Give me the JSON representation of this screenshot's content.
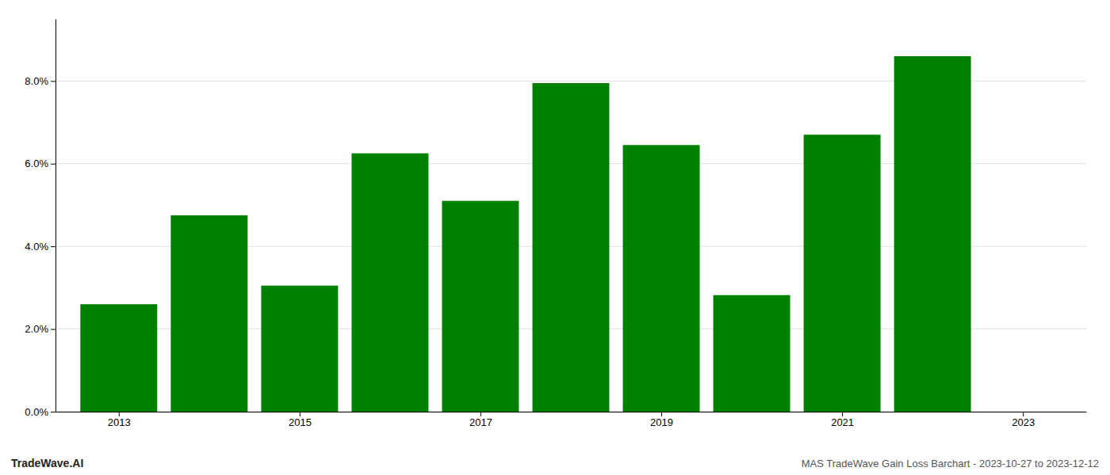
{
  "chart_data": {
    "type": "bar",
    "x": [
      2013,
      2014,
      2015,
      2016,
      2017,
      2018,
      2019,
      2020,
      2021,
      2022
    ],
    "values": [
      0.026,
      0.0475,
      0.0305,
      0.0625,
      0.051,
      0.0795,
      0.0645,
      0.0282,
      0.067,
      0.086
    ],
    "color": "#008000",
    "xlim": [
      2012.3,
      2023.7
    ],
    "xticks": [
      2013,
      2015,
      2017,
      2019,
      2021,
      2023
    ],
    "ylim": [
      0.0,
      0.095
    ],
    "yticks": [
      {
        "value": 0.0,
        "label": "0.0%"
      },
      {
        "value": 0.02,
        "label": "2.0%"
      },
      {
        "value": 0.04,
        "label": "4.0%"
      },
      {
        "value": 0.06,
        "label": "6.0%"
      },
      {
        "value": 0.08,
        "label": "8.0%"
      }
    ],
    "grid": true,
    "annotations": [
      "TradeWave.AI",
      "MAS TradeWave Gain Loss Barchart - 2023-10-27 to 2023-12-12"
    ]
  }
}
